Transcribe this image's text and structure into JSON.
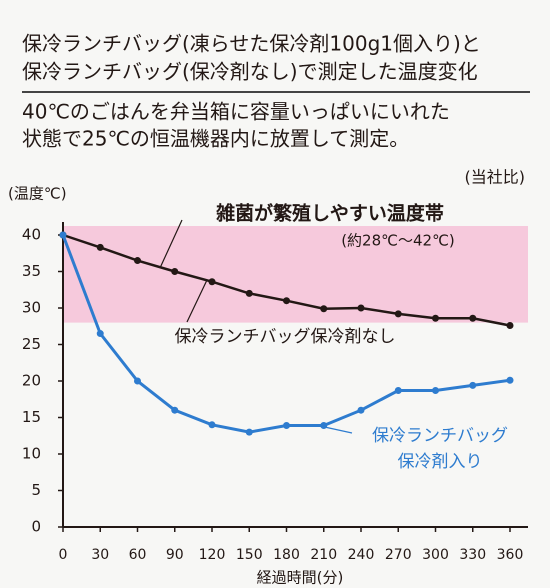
{
  "chart_data": {
    "type": "line",
    "title_lines": [
      "保冷ランチバッグ(凍らせた保冷剤100g1個入り)と",
      "保冷ランチバッグ(保冷剤なし)で測定した温度変化"
    ],
    "subtitle_lines": [
      "40℃のごはんを弁当箱に容量いっぱいにいれた",
      "状態で25℃の恒温機器内に放置して測定。"
    ],
    "note": "(当社比)",
    "y_label": "(温度℃)",
    "x_label": "経過時間(分)",
    "x": [
      0,
      30,
      60,
      90,
      120,
      150,
      180,
      210,
      240,
      270,
      300,
      330,
      360
    ],
    "series": [
      {
        "color": "#231815",
        "values": [
          40,
          38.3,
          36.5,
          35,
          33.6,
          32,
          31,
          29.9,
          30,
          29.2,
          28.6,
          28.6,
          27.6
        ]
      },
      {
        "color": "#2e7ccf",
        "values": [
          40,
          26.5,
          20,
          16,
          14,
          13,
          13.9,
          13.9,
          16,
          18.7,
          18.7,
          19.4,
          20.1
        ]
      }
    ],
    "band": {
      "range": [
        28,
        42
      ],
      "color": "#f6c9dc",
      "label": "雑菌が繁殖しやすい温度帯",
      "range_label": "(約28℃～42℃)"
    },
    "series_labels": [
      [
        "保冷ランチバッグ保冷剤なし"
      ],
      [
        "保冷ランチバッグ",
        "保冷剤入り"
      ]
    ],
    "xlim": [
      0,
      360
    ],
    "xticks": [
      0,
      30,
      60,
      90,
      120,
      150,
      180,
      210,
      240,
      270,
      300,
      330,
      360
    ],
    "ylim": [
      0,
      40
    ],
    "yticks": [
      0,
      5,
      10,
      15,
      20,
      25,
      30,
      35,
      40
    ]
  }
}
